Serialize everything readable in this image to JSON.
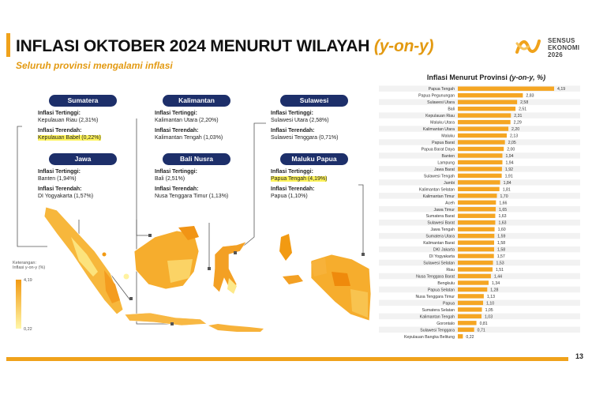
{
  "header": {
    "title_main": "INFLASI OKTOBER 2024 MENURUT WILAYAH",
    "title_suffix": "(y-on-y)",
    "subtitle": "Seluruh provinsi mengalami inflasi"
  },
  "logo": {
    "line1": "SENSUS",
    "line2": "EKONOMI",
    "line3": "2026",
    "icon": "sensus-ekonomi-mark"
  },
  "regions": [
    {
      "name": "Sumatera",
      "high_label": "Inflasi Tertinggi:",
      "high_value": "Kepulauan Riau (2,31%)",
      "low_label": "Inflasi Terendah:",
      "low_value": "Kepulauan Babel (0,22%)"
    },
    {
      "name": "Kalimantan",
      "high_label": "Inflasi Tertinggi:",
      "high_value": "Kalimantan Utara (2,20%)",
      "low_label": "Inflasi Terendah:",
      "low_value": "Kalimantan Tengah (1,03%)"
    },
    {
      "name": "Sulawesi",
      "high_label": "Inflasi Tertinggi:",
      "high_value": "Sulawesi Utara (2,58%)",
      "low_label": "Inflasi Terendah:",
      "low_value": "Sulawesi Tenggara (0,71%)"
    },
    {
      "name": "Jawa",
      "high_label": "Inflasi Tertinggi:",
      "high_value": "Banten (1,94%)",
      "low_label": "Inflasi Terendah:",
      "low_value": "DI Yogyakarta (1,57%)"
    },
    {
      "name": "Bali Nusra",
      "high_label": "Inflasi Tertinggi:",
      "high_value": "Bali (2,51%)",
      "low_label": "Inflasi Terendah:",
      "low_value": "Nusa Tenggara Timur (1,13%)"
    },
    {
      "name": "Maluku Papua",
      "high_label": "Inflasi Tertinggi:",
      "high_value": "Papua Tengah (4,19%)",
      "low_label": "Inflasi Terendah:",
      "low_value": "Papua (1,10%)"
    }
  ],
  "legend": {
    "title_line1": "Keterangan:",
    "title_line2": "Inflasi y-on-y (%)",
    "max": "4,19",
    "min": "0,22",
    "color_high": "#f29a12",
    "color_low": "#fff6a8"
  },
  "chart_title_main": "Inflasi Menurut Provinsi",
  "chart_title_unit": "(y-on-y, %)",
  "page_number": "13",
  "colors": {
    "accent": "#f0a21b",
    "pill": "#1d2f6a",
    "highlight": "#fff45c",
    "bar": "#f5a623"
  },
  "chart_data": {
    "type": "bar",
    "orientation": "horizontal",
    "title": "Inflasi Menurut Provinsi (y-on-y, %)",
    "categories": [
      "Papua Tengah",
      "Papua Pegunungan",
      "Sulawesi Utara",
      "Bali",
      "Kepulauan Riau",
      "Maluku Utara",
      "Kalimantan Utara",
      "Maluku",
      "Papua Barat",
      "Papua Barat Daya",
      "Banten",
      "Lampung",
      "Jawa Barat",
      "Sulawesi Tengah",
      "Jambi",
      "Kalimantan Selatan",
      "Kalimantan Timur",
      "Aceh",
      "Jawa Timur",
      "Sumatera Barat",
      "Sulawesi Barat",
      "Jawa Tengah",
      "Sumatera Utara",
      "Kalimantan Barat",
      "DKI Jakarta",
      "DI Yogyakarta",
      "Sulawesi Selatan",
      "Riau",
      "Nusa Tenggara Barat",
      "Bengkulu",
      "Papua Selatan",
      "Nusa Tenggara Timur",
      "Papua",
      "Sumatera Selatan",
      "Kalimantan Tengah",
      "Gorontalo",
      "Sulawesi Tenggara",
      "Kepulauan Bangka Belitung"
    ],
    "values": [
      4.19,
      2.83,
      2.58,
      2.51,
      2.31,
      2.29,
      2.2,
      2.13,
      2.05,
      2.0,
      1.94,
      1.94,
      1.92,
      1.91,
      1.84,
      1.81,
      1.7,
      1.66,
      1.65,
      1.63,
      1.63,
      1.6,
      1.59,
      1.58,
      1.58,
      1.57,
      1.53,
      1.51,
      1.44,
      1.34,
      1.28,
      1.13,
      1.1,
      1.05,
      1.03,
      0.81,
      0.71,
      0.22
    ],
    "value_labels": [
      "4,19",
      "2,83",
      "2,58",
      "2,51",
      "2,31",
      "2,29",
      "2,20",
      "2,13",
      "2,05",
      "2,00",
      "1,94",
      "1,94",
      "1,92",
      "1,91",
      "1,84",
      "1,81",
      "1,70",
      "1,66",
      "1,65",
      "1,63",
      "1,63",
      "1,60",
      "1,59",
      "1,58",
      "1,58",
      "1,57",
      "1,53",
      "1,51",
      "1,44",
      "1,34",
      "1,28",
      "1,13",
      "1,10",
      "1,05",
      "1,03",
      "0,81",
      "0,71",
      "0,22"
    ],
    "xlim": [
      0,
      4.19
    ],
    "legend": "none",
    "grid": false
  }
}
